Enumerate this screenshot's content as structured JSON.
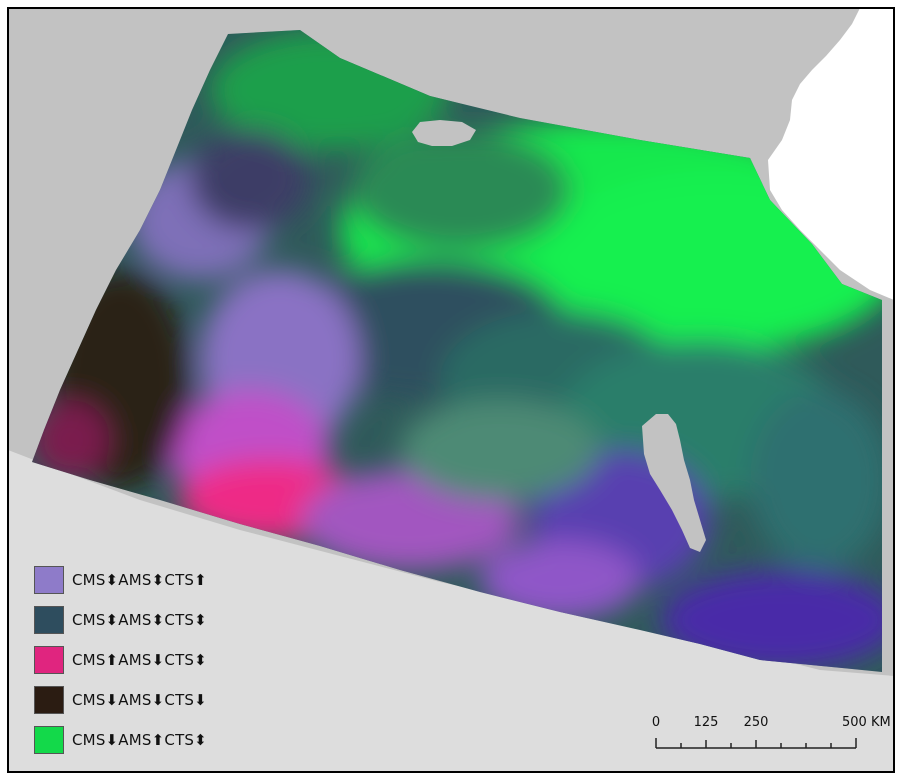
{
  "map": {
    "colors": {
      "land": "#c2c2c2",
      "bottom_land": "#d9d9d9",
      "lake": "#c2c2c2",
      "coast_white": "#ffffff",
      "frame": "#000000"
    },
    "legend": [
      {
        "swatch_color": "#8e7bc9",
        "label": "CMS⬍AMS⬍CTS⬆"
      },
      {
        "swatch_color": "#2e4d5e",
        "label": "CMS⬍AMS⬍CTS⬍"
      },
      {
        "swatch_color": "#e0257f",
        "label": "CMS⬆AMS⬇CTS⬍"
      },
      {
        "swatch_color": "#2b1c12",
        "label": "CMS⬇AMS⬇CTS⬇"
      },
      {
        "swatch_color": "#13d94a",
        "label": "CMS⬇AMS⬆CTS⬍"
      }
    ],
    "scale_bar": {
      "labels": [
        "0",
        "125",
        "250",
        "500 KM"
      ],
      "values": [
        0,
        125,
        250,
        500
      ],
      "unit": "KM"
    }
  }
}
